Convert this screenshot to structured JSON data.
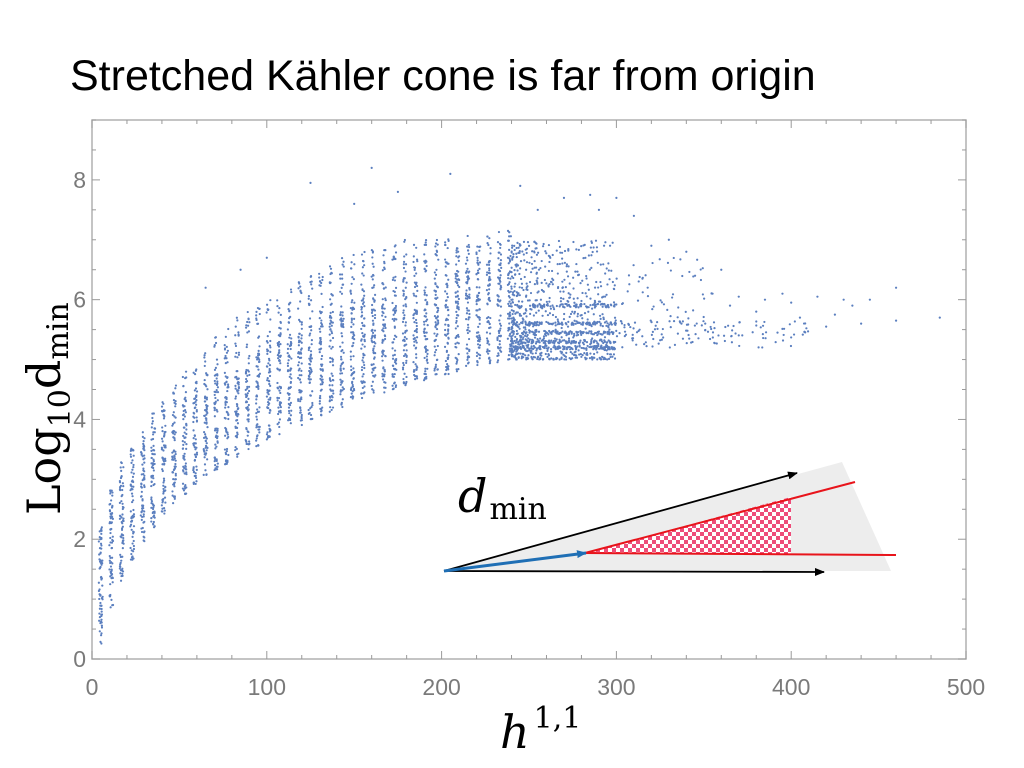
{
  "slide": {
    "title": "Stretched Kähler cone is far from origin"
  },
  "chart_data": {
    "type": "scatter",
    "title": "",
    "xlabel": "h^{1,1}",
    "ylabel": "Log_10 d_min",
    "xlim": [
      0,
      500
    ],
    "ylim": [
      0,
      9
    ],
    "xticks": [
      0,
      100,
      200,
      300,
      400,
      500
    ],
    "yticks": [
      0,
      2,
      4,
      6,
      8
    ],
    "grid": false,
    "marker_color": "#5b7fbf",
    "series": [
      {
        "dense_columns_below_240": {
          "x_step": 6,
          "columns": [
            [
              5,
              0.25,
              1.85,
              2.2
            ],
            [
              11,
              0.85,
              2.45,
              2.85
            ],
            [
              17,
              1.3,
              2.85,
              3.3
            ],
            [
              23,
              1.65,
              3.15,
              3.55
            ],
            [
              29,
              1.95,
              3.4,
              3.8
            ],
            [
              35,
              2.2,
              3.65,
              4.15
            ],
            [
              41,
              2.4,
              3.85,
              4.3
            ],
            [
              47,
              2.6,
              4.0,
              4.6
            ],
            [
              53,
              2.75,
              4.2,
              4.85
            ],
            [
              59,
              2.9,
              4.35,
              5.05
            ],
            [
              65,
              3.05,
              4.5,
              5.2
            ],
            [
              71,
              3.15,
              4.65,
              5.4
            ],
            [
              77,
              3.25,
              4.8,
              5.55
            ],
            [
              83,
              3.35,
              4.9,
              5.7
            ],
            [
              89,
              3.45,
              5.0,
              5.8
            ],
            [
              95,
              3.55,
              5.1,
              5.9
            ],
            [
              101,
              3.65,
              5.2,
              6.0
            ],
            [
              107,
              3.75,
              5.3,
              6.1
            ],
            [
              113,
              3.85,
              5.4,
              6.2
            ],
            [
              119,
              3.9,
              5.5,
              6.3
            ],
            [
              125,
              4.0,
              5.6,
              6.4
            ],
            [
              131,
              4.05,
              5.7,
              6.5
            ],
            [
              137,
              4.1,
              5.8,
              6.6
            ],
            [
              143,
              4.2,
              5.85,
              6.7
            ],
            [
              149,
              4.3,
              5.9,
              6.75
            ],
            [
              155,
              4.35,
              6.0,
              6.8
            ],
            [
              161,
              4.4,
              6.05,
              6.85
            ],
            [
              167,
              4.45,
              6.1,
              6.9
            ],
            [
              173,
              4.5,
              6.15,
              6.95
            ],
            [
              179,
              4.55,
              6.2,
              7.0
            ],
            [
              185,
              4.6,
              6.25,
              7.0
            ],
            [
              191,
              4.65,
              6.3,
              7.05
            ],
            [
              197,
              4.7,
              6.3,
              7.05
            ],
            [
              203,
              4.75,
              6.35,
              7.05
            ],
            [
              209,
              4.8,
              6.4,
              7.1
            ],
            [
              215,
              4.85,
              6.45,
              7.1
            ],
            [
              221,
              4.9,
              6.45,
              7.1
            ],
            [
              227,
              4.9,
              6.5,
              7.1
            ],
            [
              233,
              4.95,
              6.5,
              7.15
            ],
            [
              239,
              5.0,
              6.5,
              7.15
            ]
          ]
        },
        "cloud_240_300": {
          "x": [
            240,
            300
          ],
          "y": [
            5.0,
            7.0
          ],
          "bands": [
            5.2,
            5.3,
            5.45,
            5.6,
            5.9
          ]
        },
        "sparse_points": [
          [
            65,
            6.2
          ],
          [
            85,
            6.5
          ],
          [
            100,
            6.7
          ],
          [
            125,
            7.95
          ],
          [
            150,
            7.6
          ],
          [
            160,
            8.2
          ],
          [
            175,
            7.8
          ],
          [
            205,
            8.1
          ],
          [
            245,
            7.9
          ],
          [
            255,
            7.5
          ],
          [
            270,
            7.7
          ],
          [
            285,
            7.75
          ],
          [
            290,
            7.5
          ],
          [
            300,
            7.7
          ],
          [
            310,
            7.4
          ],
          [
            320,
            6.9
          ],
          [
            330,
            7.0
          ],
          [
            340,
            6.8
          ],
          [
            345,
            6.4
          ],
          [
            355,
            6.1
          ],
          [
            360,
            6.5
          ],
          [
            365,
            5.9
          ],
          [
            370,
            6.05
          ],
          [
            380,
            5.8
          ],
          [
            385,
            6.0
          ],
          [
            395,
            6.1
          ],
          [
            400,
            5.95
          ],
          [
            405,
            5.7
          ],
          [
            415,
            6.05
          ],
          [
            425,
            5.75
          ],
          [
            430,
            6.0
          ],
          [
            435,
            5.9
          ],
          [
            445,
            6.0
          ],
          [
            460,
            6.2
          ],
          [
            460,
            5.65
          ],
          [
            485,
            5.7
          ],
          [
            420,
            5.55
          ],
          [
            440,
            5.6
          ]
        ]
      }
    ]
  },
  "inset": {
    "label": "d",
    "label_sub": "min",
    "colors": {
      "cone_fill": "#ededed",
      "arrows": "#000000",
      "short_arrow": "#1f6fb5",
      "stretched_edges": "#e8141b",
      "hatch": "#ee4d7a"
    }
  },
  "axis_titles": {
    "y_main": "Log",
    "y_sub1": "10",
    "y_main2": "d",
    "y_sub2": "min",
    "x_main": "h",
    "x_sup": "1,1"
  }
}
